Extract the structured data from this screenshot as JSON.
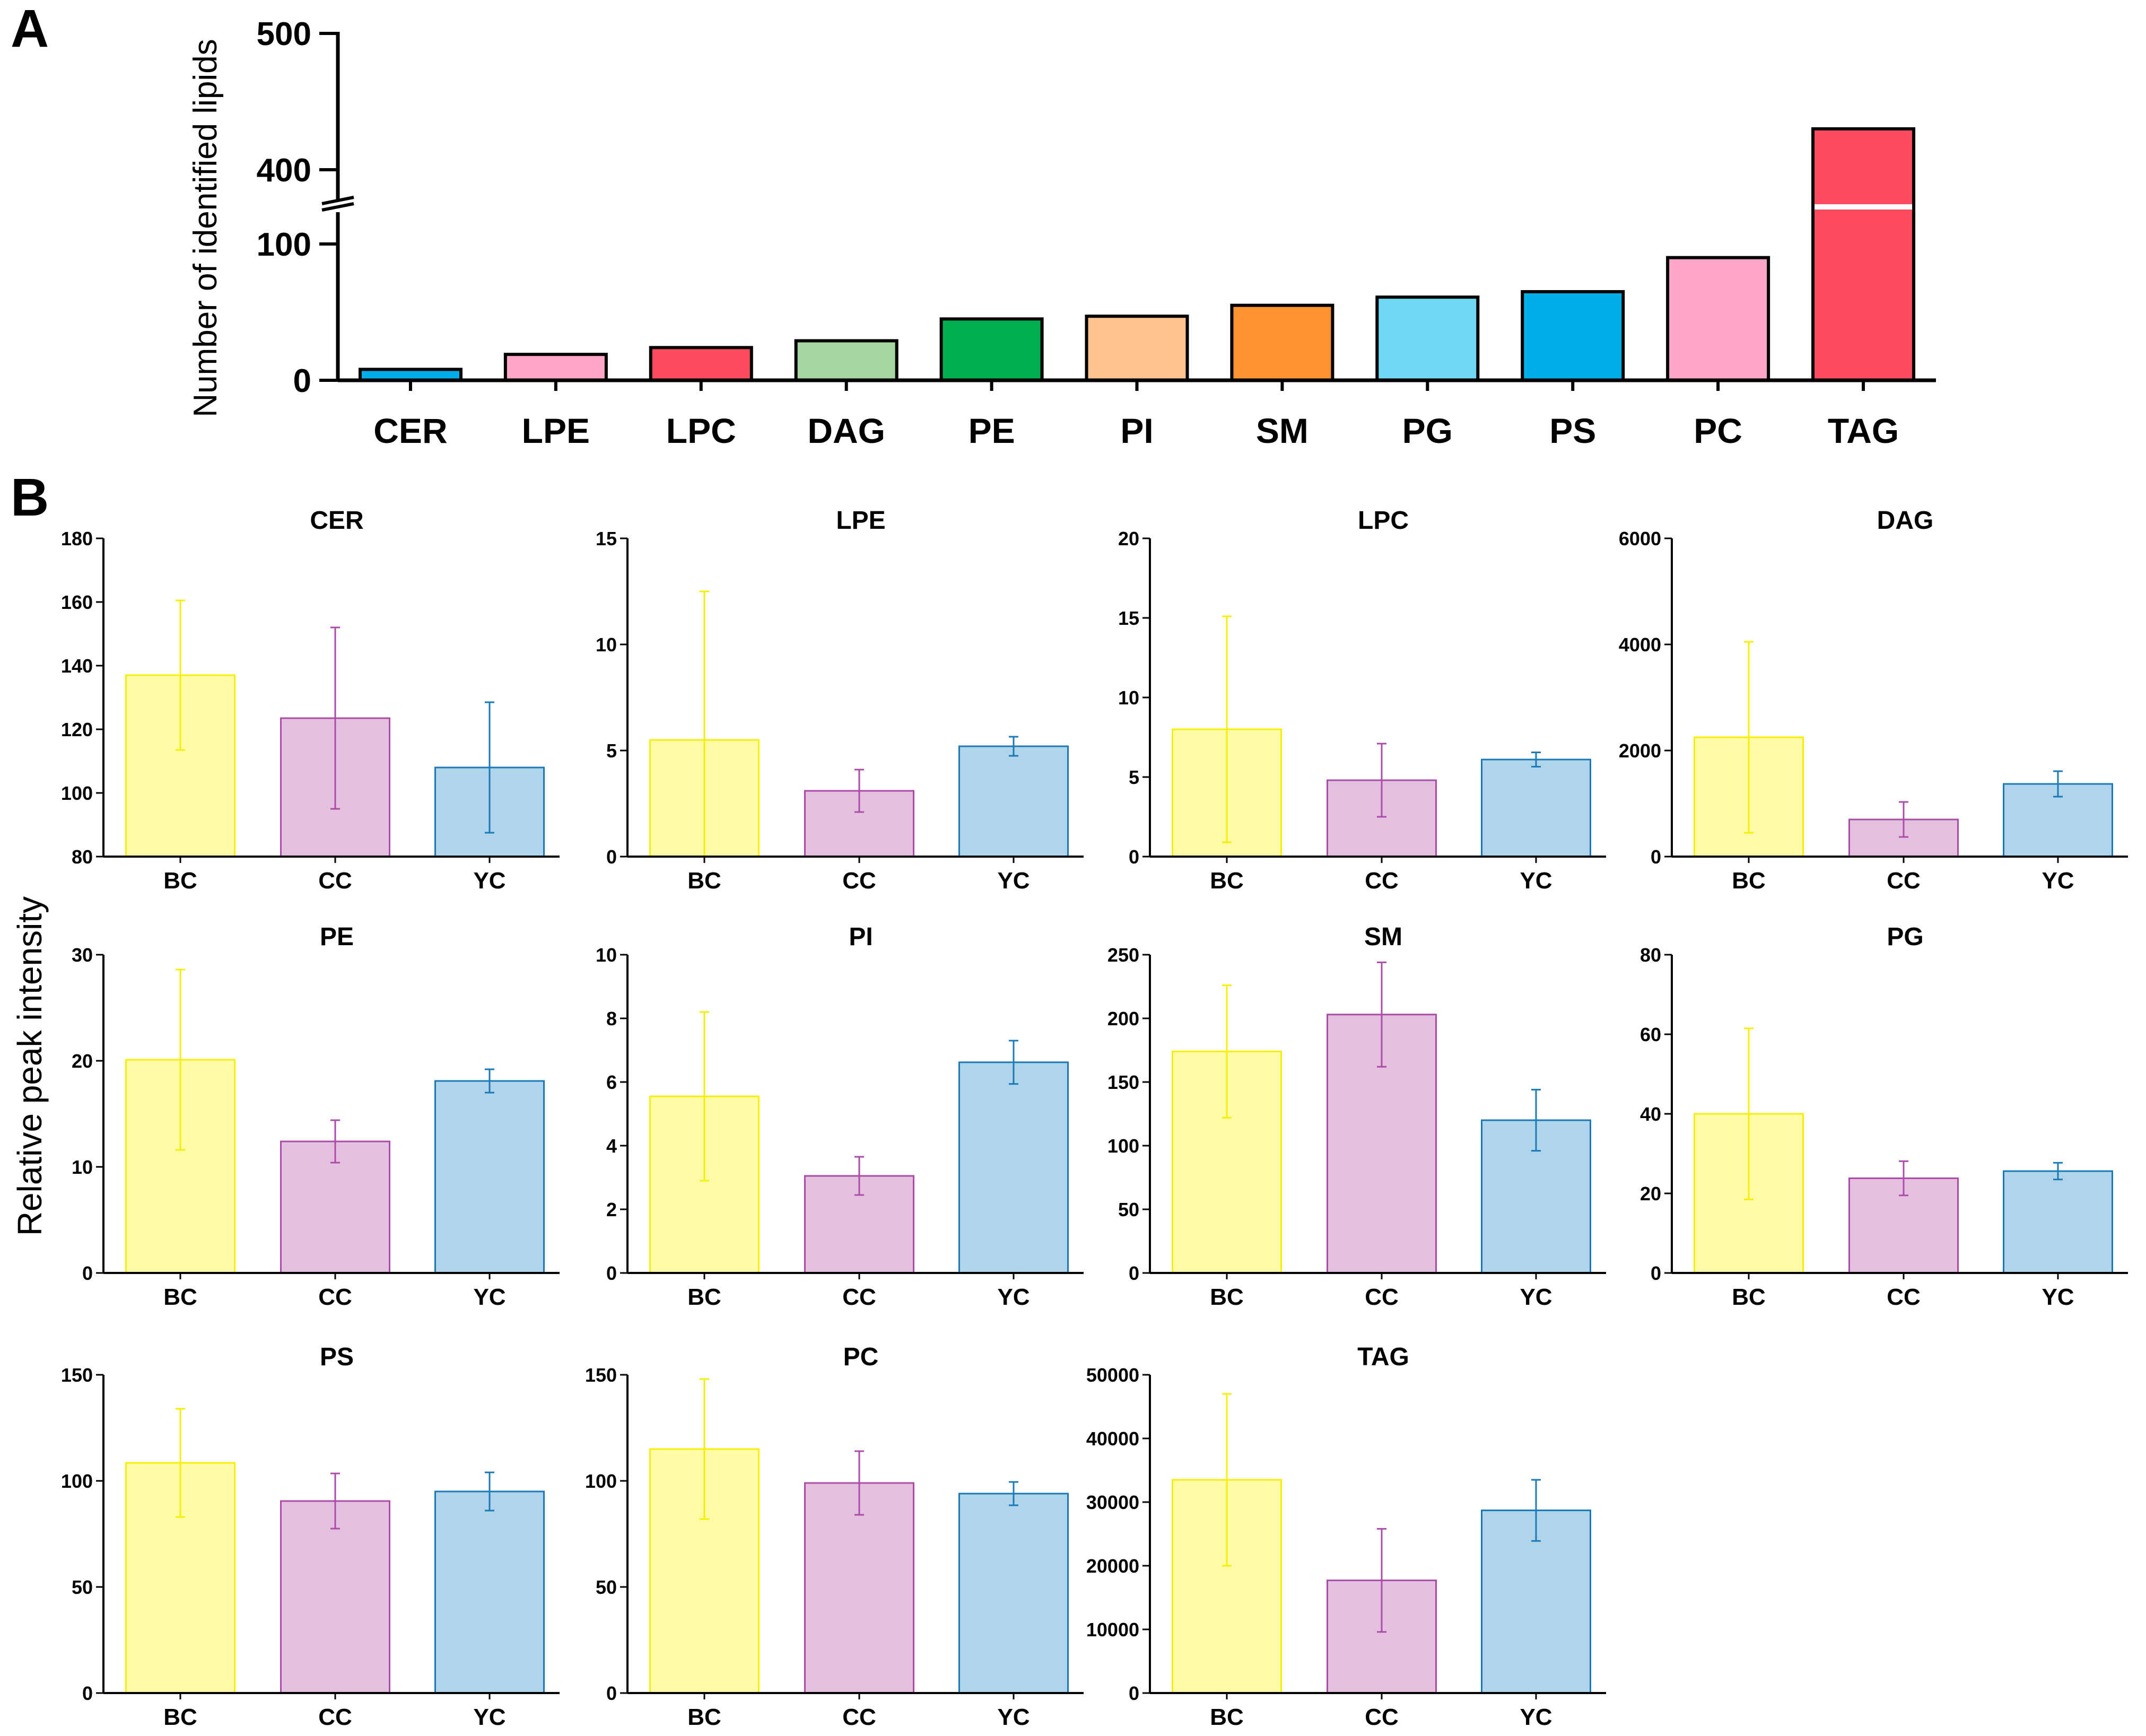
{
  "panel_labels": {
    "a": "A",
    "b": "B"
  },
  "chart_data": [
    {
      "type": "bar",
      "panel": "A",
      "ylabel": "Number of identified lipids",
      "categories": [
        "CER",
        "LPE",
        "LPC",
        "DAG",
        "PE",
        "PI",
        "SM",
        "PG",
        "PS",
        "PC",
        "TAG"
      ],
      "values": [
        8,
        19,
        24,
        29,
        45,
        47,
        55,
        61,
        65,
        90,
        430
      ],
      "colors": [
        "#00aee8",
        "#ffa6c9",
        "#fe4b5e",
        "#a5d6a0",
        "#00b050",
        "#fcc28f",
        "#fe9330",
        "#6fd8f4",
        "#00aee8",
        "#ffa6c9",
        "#fe4b5e"
      ],
      "axis_break": {
        "lower_range": [
          0,
          100
        ],
        "upper_range": [
          380,
          500
        ]
      },
      "yticks": [
        "0",
        "100",
        "400",
        "500"
      ]
    },
    {
      "type": "bar",
      "panel": "B",
      "ylabel": "Relative peak intensity",
      "groups": [
        "BC",
        "CC",
        "YC"
      ],
      "group_colors": {
        "fill": [
          "#fefba8",
          "#e4c0df",
          "#b0d4ea"
        ],
        "stroke": [
          "#f4f000",
          "#ad4ba8",
          "#1a7ab8"
        ]
      },
      "subplots": [
        {
          "title": "CER",
          "ylim": [
            80,
            180
          ],
          "yticks": [
            "80",
            "100",
            "120",
            "140",
            "160",
            "180"
          ],
          "values": [
            137,
            123.5,
            108
          ],
          "errors": [
            23.5,
            28.5,
            20.5
          ]
        },
        {
          "title": "LPE",
          "ylim": [
            0,
            15
          ],
          "yticks": [
            "0",
            "5",
            "10",
            "15"
          ],
          "values": [
            5.5,
            3.1,
            5.2
          ],
          "errors": [
            7,
            1,
            0.45
          ]
        },
        {
          "title": "LPC",
          "ylim": [
            0,
            20
          ],
          "yticks": [
            "0",
            "5",
            "10",
            "15",
            "20"
          ],
          "values": [
            8,
            4.8,
            6.1
          ],
          "errors": [
            7.1,
            2.3,
            0.45
          ]
        },
        {
          "title": "DAG",
          "ylim": [
            0,
            6000
          ],
          "yticks": [
            "0",
            "2000",
            "4000",
            "6000"
          ],
          "values": [
            2250,
            700,
            1370
          ],
          "errors": [
            1800,
            330,
            240
          ]
        },
        {
          "title": "PE",
          "ylim": [
            0,
            30
          ],
          "yticks": [
            "0",
            "10",
            "20",
            "30"
          ],
          "values": [
            20.1,
            12.4,
            18.1
          ],
          "errors": [
            8.5,
            2,
            1.1
          ]
        },
        {
          "title": "PI",
          "ylim": [
            0,
            10
          ],
          "yticks": [
            "0",
            "2",
            "4",
            "6",
            "8",
            "10"
          ],
          "values": [
            5.55,
            3.05,
            6.62
          ],
          "errors": [
            2.65,
            0.6,
            0.68
          ]
        },
        {
          "title": "SM",
          "ylim": [
            0,
            250
          ],
          "yticks": [
            "0",
            "50",
            "100",
            "150",
            "200",
            "250"
          ],
          "values": [
            174,
            203,
            120
          ],
          "errors": [
            52,
            41,
            24
          ]
        },
        {
          "title": "PG",
          "ylim": [
            0,
            80
          ],
          "yticks": [
            "0",
            "20",
            "40",
            "60",
            "80"
          ],
          "values": [
            40,
            23.8,
            25.6
          ],
          "errors": [
            21.5,
            4.3,
            2.1
          ]
        },
        {
          "title": "PS",
          "ylim": [
            0,
            150
          ],
          "yticks": [
            "0",
            "50",
            "100",
            "150"
          ],
          "values": [
            108.5,
            90.5,
            95
          ],
          "errors": [
            25.5,
            13,
            9
          ]
        },
        {
          "title": "PC",
          "ylim": [
            0,
            150
          ],
          "yticks": [
            "0",
            "50",
            "100",
            "150"
          ],
          "values": [
            115,
            99,
            94
          ],
          "errors": [
            33,
            15,
            5.5
          ]
        },
        {
          "title": "TAG",
          "ylim": [
            0,
            50000
          ],
          "yticks": [
            "0",
            "10000",
            "20000",
            "30000",
            "40000",
            "50000"
          ],
          "values": [
            33500,
            17700,
            28700
          ],
          "errors": [
            13500,
            8100,
            4800
          ]
        }
      ]
    }
  ]
}
